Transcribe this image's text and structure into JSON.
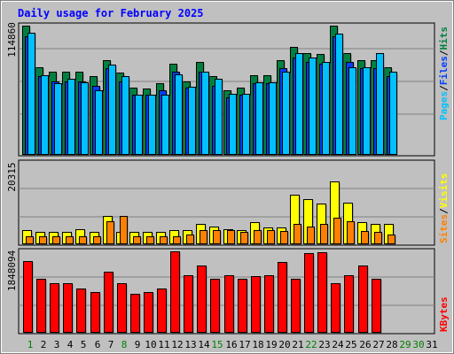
{
  "chart_data": [
    {
      "type": "bar",
      "title": "Daily usage for February 2025",
      "panel": "traffic",
      "ymax_label": "114860",
      "ylim": [
        0,
        114860
      ],
      "legend": [
        {
          "label": "Pages",
          "color": "#00c0ff"
        },
        {
          "label": "Files",
          "color": "#0040ff"
        },
        {
          "label": "Hits",
          "color": "#008040"
        }
      ],
      "legend_separator": "/",
      "categories": [
        "1",
        "2",
        "3",
        "4",
        "5",
        "6",
        "7",
        "8",
        "9",
        "10",
        "11",
        "12",
        "13",
        "14",
        "15",
        "16",
        "17",
        "18",
        "19",
        "20",
        "21",
        "22",
        "23",
        "24",
        "25",
        "26",
        "27",
        "28",
        "29",
        "30",
        "31"
      ],
      "series": [
        {
          "name": "Hits",
          "color": "#008040",
          "values": [
            114860,
            77960,
            73760,
            73760,
            73760,
            69550,
            84330,
            72710,
            59020,
            58970,
            63190,
            81180,
            65300,
            82230,
            69550,
            56910,
            59020,
            70600,
            70600,
            84330,
            95930,
            90670,
            89610,
            114860,
            90670,
            84330,
            84330,
            77960,
            null,
            null,
            null
          ]
        },
        {
          "name": "Files",
          "color": "#0040ff",
          "values": [
            105370,
            69550,
            65300,
            65300,
            65300,
            61070,
            76920,
            65300,
            52680,
            52680,
            56910,
            73760,
            59020,
            73760,
            61070,
            50570,
            52680,
            63190,
            63190,
            76920,
            86480,
            82230,
            81180,
            105370,
            82230,
            76920,
            76920,
            69550,
            null,
            null,
            null
          ]
        },
        {
          "name": "Pages",
          "color": "#00c0ff",
          "values": [
            108500,
            70600,
            63190,
            67440,
            64250,
            56910,
            80110,
            69550,
            52680,
            52680,
            52680,
            71650,
            60120,
            73760,
            67440,
            53730,
            53730,
            64250,
            64250,
            73760,
            90670,
            86480,
            82230,
            107410,
            77960,
            77960,
            90670,
            73760,
            null,
            null,
            null
          ]
        }
      ]
    },
    {
      "type": "bar",
      "panel": "visitors",
      "ymax_label": "20315",
      "ylim": [
        0,
        20315
      ],
      "legend": [
        {
          "label": "Sites",
          "color": "#ff8000"
        },
        {
          "label": "Visits",
          "color": "#ffff00"
        }
      ],
      "legend_separator": "/",
      "categories": [
        "1",
        "2",
        "3",
        "4",
        "5",
        "6",
        "7",
        "8",
        "9",
        "10",
        "11",
        "12",
        "13",
        "14",
        "15",
        "16",
        "17",
        "18",
        "19",
        "20",
        "21",
        "22",
        "23",
        "24",
        "25",
        "26",
        "27",
        "28",
        "29",
        "30",
        "31"
      ],
      "series": [
        {
          "name": "Visits",
          "color": "#ffff00",
          "values": [
            3250,
            2960,
            2850,
            2850,
            3550,
            2960,
            7010,
            2960,
            2850,
            2850,
            2850,
            3250,
            3250,
            4810,
            4250,
            3550,
            3250,
            5300,
            4000,
            4000,
            12360,
            11160,
            10040,
            15710,
            10350,
            5300,
            4810,
            4810,
            null,
            null,
            null
          ]
        },
        {
          "name": "Sites",
          "color": "#ff8000",
          "values": [
            1850,
            1850,
            1850,
            1850,
            1850,
            1850,
            5620,
            6810,
            1850,
            1850,
            1850,
            1850,
            2170,
            3250,
            3440,
            3250,
            2850,
            3440,
            3440,
            3080,
            4810,
            4250,
            4810,
            6480,
            5620,
            3080,
            2850,
            2170,
            null,
            null,
            null
          ]
        }
      ]
    },
    {
      "type": "bar",
      "panel": "volume",
      "ymax_label": "1848094",
      "ylim": [
        0,
        1848094
      ],
      "legend": [
        {
          "label": "KBytes",
          "color": "#ff0000"
        }
      ],
      "categories": [
        "1",
        "2",
        "3",
        "4",
        "5",
        "6",
        "7",
        "8",
        "9",
        "10",
        "11",
        "12",
        "13",
        "14",
        "15",
        "16",
        "17",
        "18",
        "19",
        "20",
        "21",
        "22",
        "23",
        "24",
        "25",
        "26",
        "27",
        "28",
        "29",
        "30",
        "31"
      ],
      "series": [
        {
          "name": "KBytes",
          "color": "#ff0000",
          "values": [
            1626300,
            1214560,
            1108730,
            1119310,
            1002910,
            923530,
            1389200,
            1108730,
            865320,
            907660,
            997620,
            1848094,
            1304530,
            1516170,
            1214560,
            1294000,
            1214560,
            1272790,
            1304530,
            1605140,
            1214560,
            1816300,
            1837400,
            1119310,
            1294000,
            1516170,
            1214560,
            null,
            null,
            null,
            null
          ]
        }
      ]
    }
  ],
  "weekend_days": [
    "1",
    "8",
    "15",
    "22",
    "29",
    "30"
  ]
}
